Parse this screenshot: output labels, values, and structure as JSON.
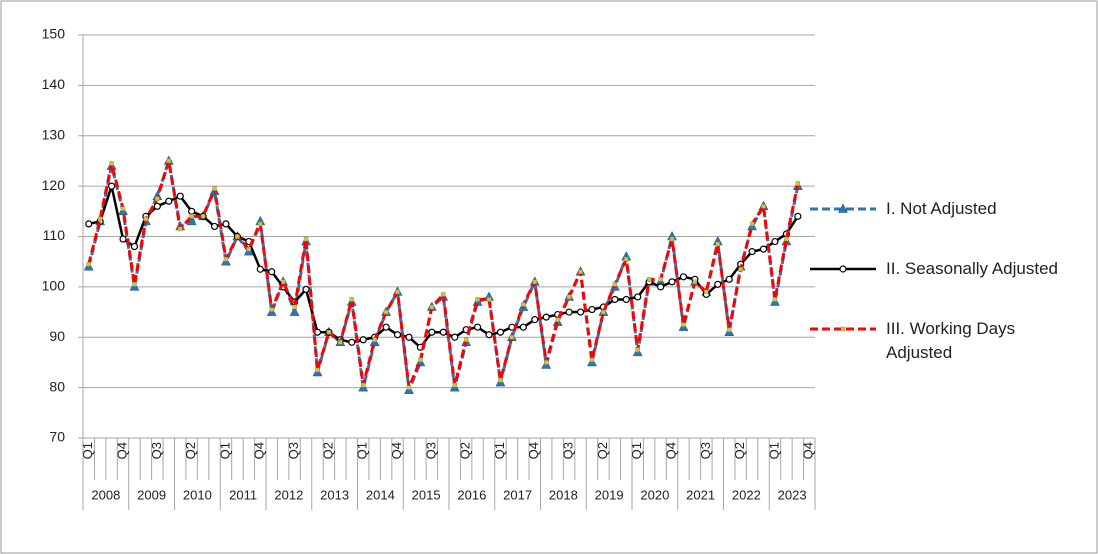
{
  "chart_data": {
    "type": "line",
    "categories": [
      "Q1",
      null,
      null,
      "Q4",
      null,
      null,
      "Q3",
      null,
      null,
      "Q2",
      null,
      null,
      "Q1",
      null,
      null,
      "Q4",
      null,
      null,
      "Q3",
      null,
      null,
      "Q2",
      null,
      null,
      "Q1",
      null,
      null,
      "Q4",
      null,
      null,
      "Q3",
      null,
      null,
      "Q2",
      null,
      null,
      "Q1",
      null,
      null,
      "Q4",
      null,
      null,
      "Q3",
      null,
      null,
      "Q2",
      null,
      null,
      "Q1",
      null,
      null,
      "Q4",
      null,
      null,
      "Q3",
      null,
      null,
      "Q2",
      null,
      null,
      "Q1",
      null,
      null,
      "Q4"
    ],
    "groups": [
      "2008",
      "2009",
      "2010",
      "2011",
      "2012",
      "2013",
      "2014",
      "2015",
      "2016",
      "2017",
      "2018",
      "2019",
      "2020",
      "2021",
      "2022",
      "2023"
    ],
    "series": [
      {
        "name": "I. Not Adjusted",
        "color": "#2e75b6",
        "dash": true,
        "marker": "triangle",
        "values": [
          104,
          113,
          124,
          115,
          100,
          113,
          118,
          125,
          112,
          113,
          114,
          119,
          105,
          110,
          107,
          113,
          95,
          101,
          95,
          109,
          83,
          91,
          89,
          97,
          80,
          89,
          95,
          99,
          79.5,
          85,
          96,
          98,
          80,
          89,
          97,
          98,
          81,
          90,
          96,
          101,
          84.5,
          93,
          98,
          103,
          85,
          95,
          100,
          106,
          87,
          101,
          101,
          110,
          92,
          101,
          99,
          109,
          91,
          104,
          112,
          116,
          97,
          109,
          120,
          null
        ]
      },
      {
        "name": "II. Seasonally Adjusted",
        "color": "#000000",
        "dash": false,
        "marker": "circle",
        "values": [
          112.5,
          113,
          120,
          109.5,
          108,
          114,
          116,
          117,
          118,
          115,
          114,
          112,
          112.5,
          110,
          109,
          103.5,
          103,
          100,
          97,
          99.5,
          91,
          91,
          89.5,
          89,
          89.5,
          90,
          92,
          90.5,
          90,
          88,
          91,
          91,
          90,
          91.5,
          92,
          90.5,
          91,
          92,
          92,
          93.5,
          94,
          94.5,
          95,
          95,
          95.5,
          96,
          97.5,
          97.5,
          98,
          101,
          100,
          101,
          102,
          101.5,
          98.5,
          100.5,
          101.5,
          104.5,
          107,
          107.5,
          109,
          110.5,
          114,
          null
        ]
      },
      {
        "name": "III. Working Days Adjusted",
        "color": "#ff0000",
        "dash": true,
        "marker": "square",
        "values": [
          104.5,
          113.5,
          124.5,
          115.5,
          100.5,
          113.5,
          117.5,
          125,
          111.5,
          114,
          114,
          119.5,
          105.5,
          110,
          107.5,
          112.5,
          95.5,
          101,
          96,
          109.5,
          83.5,
          91,
          89,
          97.5,
          80.5,
          89.5,
          95,
          99,
          80,
          85.5,
          96,
          98.5,
          80.5,
          89.5,
          97.5,
          97.5,
          81.5,
          90,
          96.5,
          101,
          85,
          93.5,
          98,
          103,
          85.5,
          95,
          100.5,
          105.5,
          87.5,
          101.5,
          101.5,
          109.5,
          92.5,
          101,
          99,
          108.5,
          91.5,
          103.5,
          112.5,
          116,
          97.5,
          109.5,
          120.5,
          null
        ]
      }
    ],
    "ylim": [
      70,
      150
    ],
    "yticks": [
      70,
      80,
      90,
      100,
      110,
      120,
      130,
      140,
      150
    ],
    "grid": true
  }
}
